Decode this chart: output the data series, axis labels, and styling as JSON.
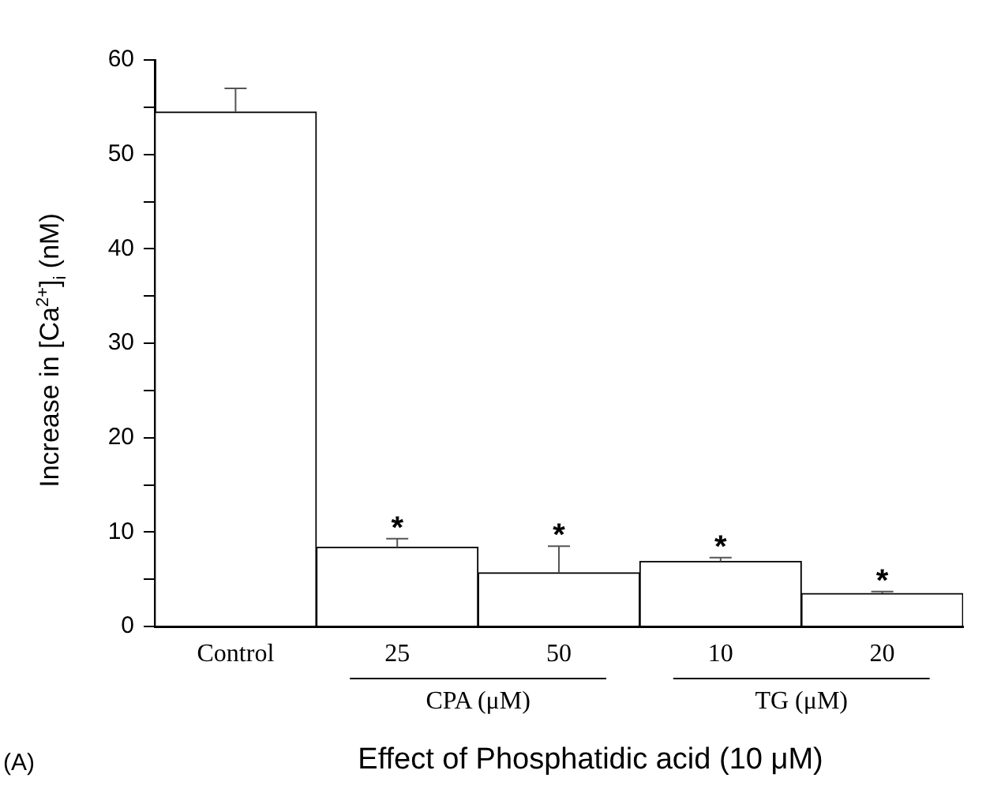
{
  "chart_data": {
    "type": "bar",
    "xlabel": "Effect of Phosphatidic acid (10 μM)",
    "ylabel": "Increase in [Ca$^{2+}$]$_{i}$ (nM)",
    "categories": [
      "Control",
      "25",
      "50",
      "10",
      "20"
    ],
    "values": [
      54.5,
      8.4,
      5.7,
      6.9,
      3.5
    ],
    "colors": [
      "#ffffff",
      "#ffffff",
      "#ffffff",
      "#ffffff",
      "#ffffff"
    ],
    "errors": [
      [
        54.5,
        57
      ],
      [
        8.4,
        9.3
      ],
      [
        5.7,
        8.5
      ],
      [
        6.9,
        7.3
      ],
      [
        3.5,
        3.7
      ]
    ],
    "ylim": [
      0,
      60
    ],
    "yticks": [
      0,
      {
        "value": 5,
        "label": null
      },
      10,
      {
        "value": 15,
        "label": null
      },
      20,
      {
        "value": 25,
        "label": null
      },
      30,
      {
        "value": 35,
        "label": null
      },
      40,
      {
        "value": 45,
        "label": null
      },
      50,
      {
        "value": 55,
        "label": null
      },
      60
    ],
    "grid": false,
    "legend": false,
    "annotations": [
      "*",
      "*",
      "*",
      "*",
      "CPA (μM)",
      "TG (μM)",
      "(A)"
    ]
  }
}
